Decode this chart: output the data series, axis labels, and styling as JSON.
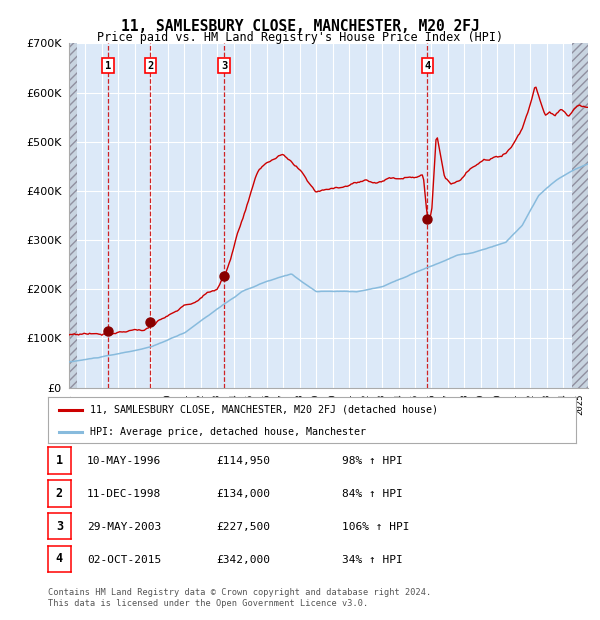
{
  "title": "11, SAMLESBURY CLOSE, MANCHESTER, M20 2FJ",
  "subtitle": "Price paid vs. HM Land Registry's House Price Index (HPI)",
  "legend_label_red": "11, SAMLESBURY CLOSE, MANCHESTER, M20 2FJ (detached house)",
  "legend_label_blue": "HPI: Average price, detached house, Manchester",
  "footer1": "Contains HM Land Registry data © Crown copyright and database right 2024.",
  "footer2": "This data is licensed under the Open Government Licence v3.0.",
  "purchases": [
    {
      "num": 1,
      "date_str": "10-MAY-1996",
      "year": 1996.36,
      "price": 114950,
      "pct": "98%",
      "dir": "↑"
    },
    {
      "num": 2,
      "date_str": "11-DEC-1998",
      "year": 1998.94,
      "price": 134000,
      "pct": "84%",
      "dir": "↑"
    },
    {
      "num": 3,
      "date_str": "29-MAY-2003",
      "year": 2003.41,
      "price": 227500,
      "pct": "106%",
      "dir": "↑"
    },
    {
      "num": 4,
      "date_str": "02-OCT-2015",
      "year": 2015.75,
      "price": 342000,
      "pct": "34%",
      "dir": "↑"
    }
  ],
  "table_rows": [
    {
      "num": 1,
      "date": "10-MAY-1996",
      "price": "£114,950",
      "pct": "98% ↑ HPI"
    },
    {
      "num": 2,
      "date": "11-DEC-1998",
      "price": "£134,000",
      "pct": "84% ↑ HPI"
    },
    {
      "num": 3,
      "date": "29-MAY-2003",
      "price": "£227,500",
      "pct": "106% ↑ HPI"
    },
    {
      "num": 4,
      "date": "02-OCT-2015",
      "price": "£342,000",
      "pct": "34% ↑ HPI"
    }
  ],
  "ylim": [
    0,
    700000
  ],
  "yticks": [
    0,
    100000,
    200000,
    300000,
    400000,
    500000,
    600000,
    700000
  ],
  "xlim_start": 1994.0,
  "xlim_end": 2025.5,
  "background_color": "#dce9f8",
  "grid_color": "#ffffff",
  "red_line_color": "#cc0000",
  "blue_line_color": "#88bbdd",
  "dashed_line_color": "#cc0000",
  "dot_color": "#880000",
  "hatch_bg": "#c8d4e0"
}
